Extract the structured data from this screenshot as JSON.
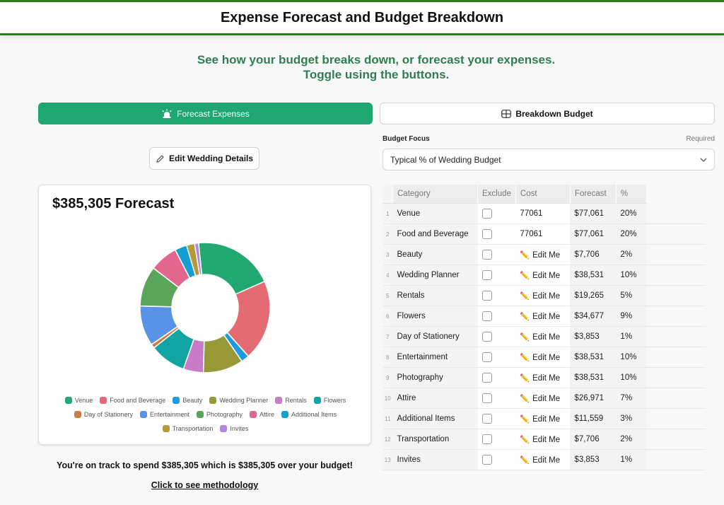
{
  "header": {
    "title": "Expense Forecast and Budget Breakdown"
  },
  "intro": {
    "line1": "See how your budget breaks down, or forecast your expenses.",
    "line2": "Toggle using the buttons."
  },
  "toggle": {
    "forecast_label": "Forecast Expenses",
    "breakdown_label": "Breakdown Budget",
    "forecast_icon": "alarm-icon",
    "breakdown_icon": "grid-icon"
  },
  "edit_button": {
    "label": "Edit Wedding Details",
    "icon": "pencil-icon"
  },
  "budget_focus": {
    "label": "Budget Focus",
    "required": "Required",
    "value": "Typical % of Wedding Budget"
  },
  "chart": {
    "title": "$385,305 Forecast"
  },
  "chart_data": {
    "type": "pie",
    "donut": true,
    "title": "$385,305 Forecast",
    "legend_position": "bottom",
    "slices": [
      {
        "name": "Venue",
        "value": 77061,
        "color": "#22a971"
      },
      {
        "name": "Food and Beverage",
        "value": 77061,
        "color": "#e46b72"
      },
      {
        "name": "Beauty",
        "value": 7706,
        "color": "#1d9be0"
      },
      {
        "name": "Wedding Planner",
        "value": 38531,
        "color": "#979a37"
      },
      {
        "name": "Rentals",
        "value": 19265,
        "color": "#c87bc6"
      },
      {
        "name": "Flowers",
        "value": 34677,
        "color": "#12a4a4"
      },
      {
        "name": "Day of Stationery",
        "value": 3853,
        "color": "#d07c45"
      },
      {
        "name": "Entertainment",
        "value": 38531,
        "color": "#5893e6"
      },
      {
        "name": "Photography",
        "value": 38531,
        "color": "#5aa55a"
      },
      {
        "name": "Attire",
        "value": 26971,
        "color": "#e2678f"
      },
      {
        "name": "Additional Items",
        "value": 11559,
        "color": "#149fd0"
      },
      {
        "name": "Transportation",
        "value": 7706,
        "color": "#b09a3a"
      },
      {
        "name": "Invites",
        "value": 3853,
        "color": "#b386dd"
      }
    ]
  },
  "summary": "You're on track to spend $385,305 which is $385,305 over your budget!",
  "methodology_link": "Click to see methodology",
  "table": {
    "headers": {
      "category": "Category",
      "exclude": "Exclude",
      "cost": "Cost",
      "forecast": "Forecast",
      "percent": "%"
    },
    "rows": [
      {
        "index": "1",
        "category": "Venue",
        "cost": "77061",
        "forecast": "$77,061",
        "percent": "20%"
      },
      {
        "index": "2",
        "category": "Food and Beverage",
        "cost": "77061",
        "forecast": "$77,061",
        "percent": "20%"
      },
      {
        "index": "3",
        "category": "Beauty",
        "cost": "Edit Me",
        "forecast": "$7,706",
        "percent": "2%"
      },
      {
        "index": "4",
        "category": "Wedding Planner",
        "cost": "Edit Me",
        "forecast": "$38,531",
        "percent": "10%"
      },
      {
        "index": "5",
        "category": "Rentals",
        "cost": "Edit Me",
        "forecast": "$19,265",
        "percent": "5%"
      },
      {
        "index": "6",
        "category": "Flowers",
        "cost": "Edit Me",
        "forecast": "$34,677",
        "percent": "9%"
      },
      {
        "index": "7",
        "category": "Day of Stationery",
        "cost": "Edit Me",
        "forecast": "$3,853",
        "percent": "1%"
      },
      {
        "index": "8",
        "category": "Entertainment",
        "cost": "Edit Me",
        "forecast": "$38,531",
        "percent": "10%"
      },
      {
        "index": "9",
        "category": "Photography",
        "cost": "Edit Me",
        "forecast": "$38,531",
        "percent": "10%"
      },
      {
        "index": "10",
        "category": "Attire",
        "cost": "Edit Me",
        "forecast": "$26,971",
        "percent": "7%"
      },
      {
        "index": "11",
        "category": "Additional Items",
        "cost": "Edit Me",
        "forecast": "$11,559",
        "percent": "3%"
      },
      {
        "index": "12",
        "category": "Transportation",
        "cost": "Edit Me",
        "forecast": "$7,706",
        "percent": "2%"
      },
      {
        "index": "13",
        "category": "Invites",
        "cost": "Edit Me",
        "forecast": "$3,853",
        "percent": "1%"
      }
    ]
  }
}
